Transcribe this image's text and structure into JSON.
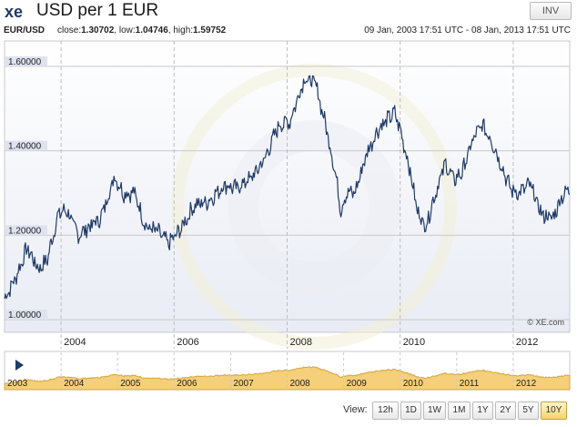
{
  "header": {
    "title": "USD per 1 EUR",
    "logo_text": "xe",
    "inv_label": "INV"
  },
  "info": {
    "pair": "EUR/USD",
    "close_label": "close:",
    "close": "1.30702",
    "low_label": "low:",
    "low": "1.04746",
    "high_label": "high:",
    "high": "1.59752",
    "range": "09 Jan, 2003 17:51 UTC - 08 Jan, 2013 17:51 UTC"
  },
  "watermark": "© XE.com",
  "colors": {
    "line": "#1f3a66",
    "navigator_fill": "#f5cf7a",
    "navigator_line": "#d6a43c",
    "label_bg": "#dfe3f0",
    "active_button": "#f4d36e"
  },
  "chart_data": {
    "type": "line",
    "x_start": "2003-01",
    "x_end": "2013-01",
    "ylim": [
      0.97,
      1.66
    ],
    "y_ticks": [
      "1.00000",
      "1.20000",
      "1.40000",
      "1.60000"
    ],
    "y_tick_values": [
      1.0,
      1.2,
      1.4,
      1.6
    ],
    "x_ticks": [
      "2004",
      "2006",
      "2008",
      "2010",
      "2012"
    ],
    "x_tick_values": [
      2004.0,
      2006.0,
      2008.0,
      2010.0,
      2012.0
    ],
    "series": [
      {
        "x": [
          2003.0,
          2003.2,
          2003.4,
          2003.6,
          2003.75,
          2003.95,
          2004.1,
          2004.3,
          2004.5,
          2004.7,
          2004.95,
          2005.1,
          2005.3,
          2005.5,
          2005.7,
          2005.9,
          2006.1,
          2006.35,
          2006.6,
          2006.9,
          2007.1,
          2007.4,
          2007.6,
          2007.85,
          2008.05,
          2008.3,
          2008.5,
          2008.7,
          2008.85,
          2008.95,
          2009.05,
          2009.2,
          2009.4,
          2009.6,
          2009.75,
          2009.9,
          2010.0,
          2010.15,
          2010.3,
          2010.45,
          2010.6,
          2010.8,
          2010.95,
          2011.1,
          2011.3,
          2011.45,
          2011.6,
          2011.75,
          2011.95,
          2012.1,
          2012.3,
          2012.5,
          2012.7,
          2012.85,
          2013.0
        ],
        "y": [
          1.05,
          1.1,
          1.17,
          1.12,
          1.14,
          1.25,
          1.26,
          1.2,
          1.22,
          1.24,
          1.34,
          1.3,
          1.3,
          1.22,
          1.21,
          1.18,
          1.21,
          1.27,
          1.28,
          1.32,
          1.31,
          1.34,
          1.38,
          1.46,
          1.47,
          1.57,
          1.56,
          1.45,
          1.35,
          1.26,
          1.3,
          1.3,
          1.39,
          1.45,
          1.47,
          1.49,
          1.45,
          1.37,
          1.26,
          1.22,
          1.29,
          1.37,
          1.33,
          1.35,
          1.43,
          1.46,
          1.43,
          1.38,
          1.31,
          1.3,
          1.32,
          1.25,
          1.24,
          1.29,
          1.31
        ]
      }
    ],
    "navigator": {
      "labels": [
        "2003",
        "2004",
        "2005",
        "2006",
        "2007",
        "2008",
        "2009",
        "2010",
        "2011",
        "2012"
      ],
      "label_values": [
        2003.0,
        2004.0,
        2005.0,
        2006.0,
        2007.0,
        2008.0,
        2009.0,
        2010.0,
        2011.0,
        2012.0
      ]
    }
  },
  "view": {
    "label": "View:",
    "buttons": [
      "12h",
      "1D",
      "1W",
      "1M",
      "1Y",
      "2Y",
      "5Y",
      "10Y"
    ],
    "active": "10Y"
  }
}
